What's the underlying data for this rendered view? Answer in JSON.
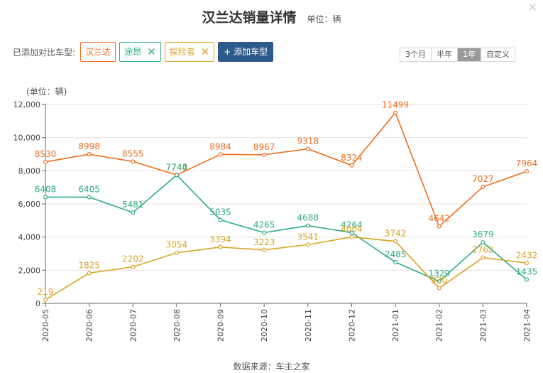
{
  "header": {
    "title": "汉兰达销量详情",
    "unit": "单位：辆"
  },
  "compare": {
    "label": "已添加对比车型:",
    "tags": [
      {
        "name": "汉兰达",
        "color": "#ee6e1f",
        "removable": false
      },
      {
        "name": "途昂",
        "color": "#2dab86",
        "removable": true
      },
      {
        "name": "探险者",
        "color": "#d9a424",
        "removable": true
      }
    ],
    "add_label": "+ 添加车型"
  },
  "range_buttons": [
    {
      "label": "3个月",
      "active": false
    },
    {
      "label": "半年",
      "active": false
    },
    {
      "label": "1年",
      "active": true
    },
    {
      "label": "自定义",
      "active": false
    }
  ],
  "close_icon": "×",
  "footer": {
    "source": "数据来源：车主之家"
  },
  "chart_data": {
    "type": "line",
    "ylabel": "(单位：辆)",
    "ylim": [
      0,
      12000
    ],
    "yticks": [
      0,
      2000,
      4000,
      6000,
      8000,
      10000,
      12000
    ],
    "ytick_labels": [
      "0",
      "2,000",
      "4,000",
      "6,000",
      "8,000",
      "10,000",
      "12,000"
    ],
    "grid": true,
    "categories": [
      "2020-05",
      "2020-06",
      "2020-07",
      "2020-08",
      "2020-09",
      "2020-10",
      "2020-11",
      "2020-12",
      "2021-01",
      "2021-02",
      "2021-03",
      "2021-04"
    ],
    "series": [
      {
        "name": "汉兰达",
        "color": "#ee6e1f",
        "values": [
          8530,
          8998,
          8555,
          7744,
          8984,
          8967,
          9318,
          8324,
          11499,
          4642,
          7027,
          7964
        ]
      },
      {
        "name": "途昂",
        "color": "#2dab86",
        "values": [
          6408,
          6405,
          5481,
          7740,
          5035,
          4265,
          4688,
          4264,
          2485,
          1329,
          3679,
          1435
        ]
      },
      {
        "name": "探险者",
        "color": "#d9a424",
        "values": [
          219,
          1825,
          2202,
          3054,
          3394,
          3223,
          3541,
          4004,
          3742,
          920,
          2762,
          2432
        ]
      }
    ]
  }
}
